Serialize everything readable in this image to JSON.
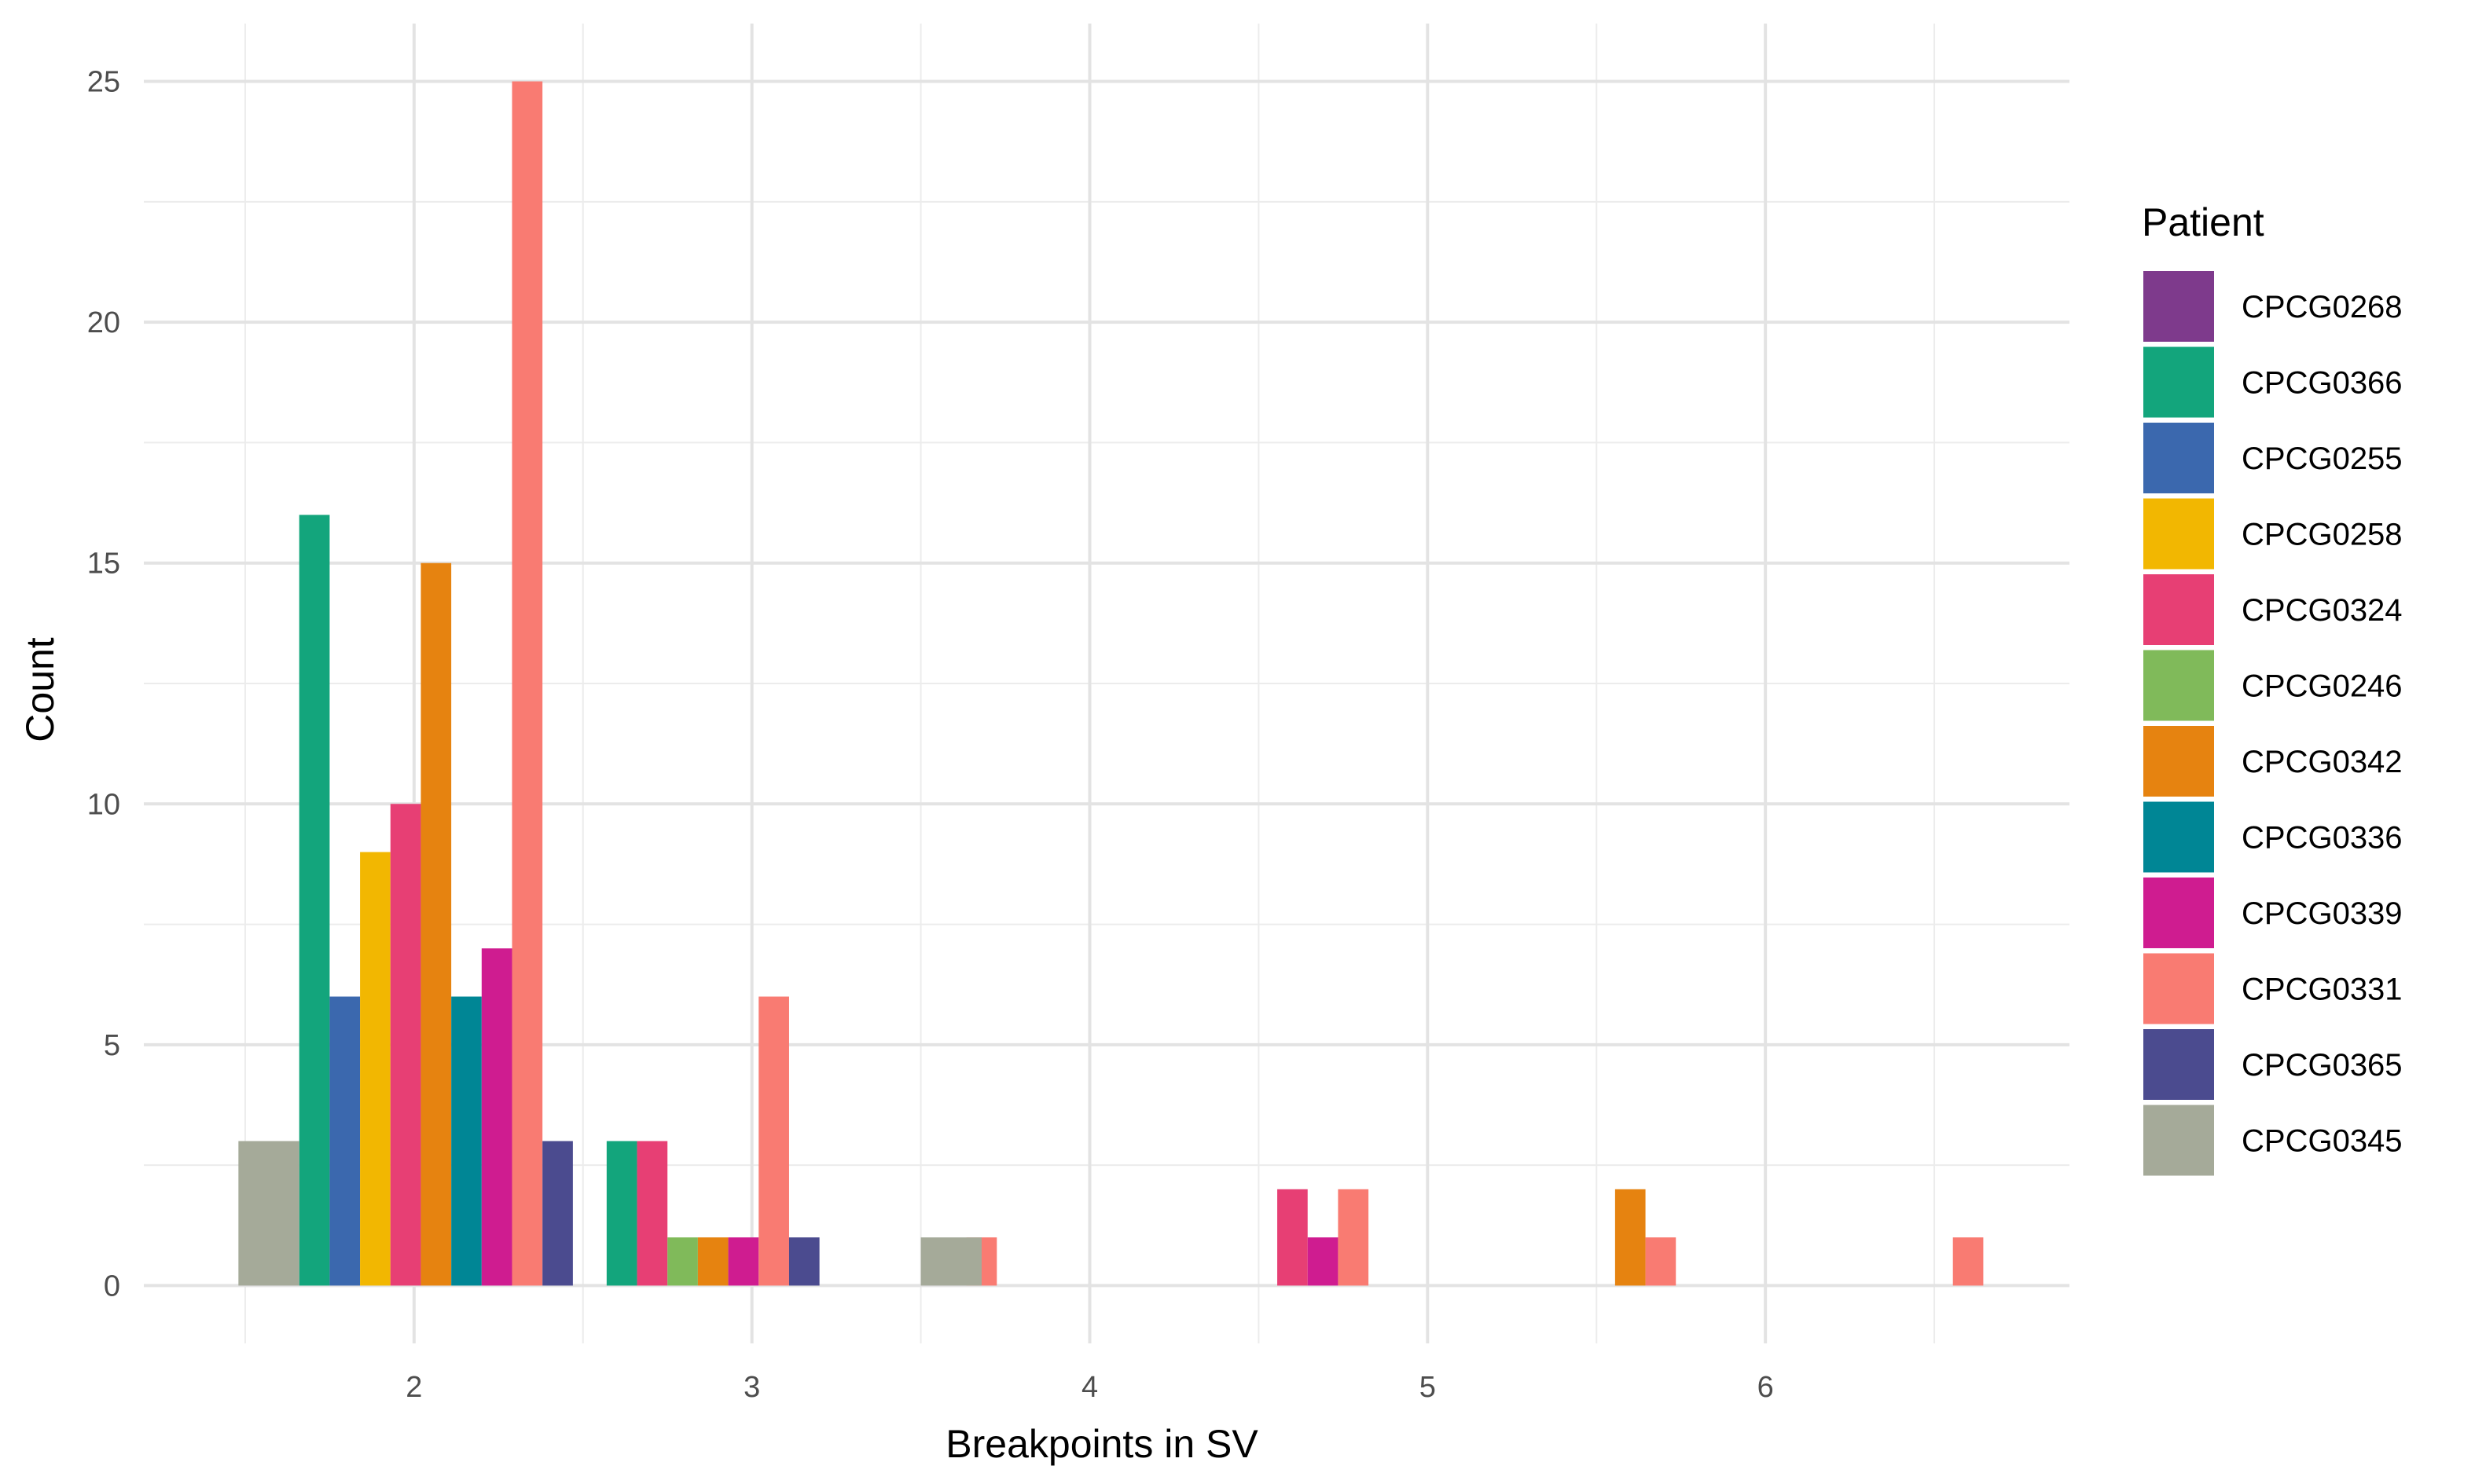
{
  "chart_data": {
    "type": "bar",
    "xlabel": "Breakpoints in SV",
    "ylabel": "Count",
    "xlim": [
      1.2,
      6.9
    ],
    "ylim": [
      -1.2,
      26.2
    ],
    "x_ticks": [
      2,
      3,
      4,
      5,
      6
    ],
    "x_tick_labels": [
      "2",
      "3",
      "4",
      "5",
      "6"
    ],
    "y_ticks": [
      0,
      5,
      10,
      15,
      20,
      25
    ],
    "y_tick_labels": [
      "0",
      "5",
      "10",
      "15",
      "20",
      "25"
    ],
    "grid": true,
    "legend": {
      "title": "Patient",
      "placement": "right"
    },
    "series": [
      {
        "name": "CPCG0268",
        "color": "#7E3A8C",
        "points": []
      },
      {
        "name": "CPCG0366",
        "color": "#13A57C",
        "points": [
          {
            "x": 1.705,
            "y": 16
          },
          {
            "x": 2.615,
            "y": 3
          }
        ]
      },
      {
        "name": "CPCG0255",
        "color": "#3B68AE",
        "points": [
          {
            "x": 1.795,
            "y": 6
          }
        ]
      },
      {
        "name": "CPCG0258",
        "color": "#F2B701",
        "points": [
          {
            "x": 1.885,
            "y": 9
          }
        ]
      },
      {
        "name": "CPCG0324",
        "color": "#E73F74",
        "points": [
          {
            "x": 1.975,
            "y": 10
          },
          {
            "x": 2.705,
            "y": 3
          },
          {
            "x": 4.6,
            "y": 2
          }
        ]
      },
      {
        "name": "CPCG0246",
        "color": "#80BA5A",
        "points": [
          {
            "x": 2.795,
            "y": 1
          }
        ]
      },
      {
        "name": "CPCG0342",
        "color": "#E68310",
        "points": [
          {
            "x": 2.065,
            "y": 15
          },
          {
            "x": 2.885,
            "y": 1
          },
          {
            "x": 5.6,
            "y": 2
          }
        ]
      },
      {
        "name": "CPCG0336",
        "color": "#008695",
        "points": [
          {
            "x": 2.155,
            "y": 6
          }
        ]
      },
      {
        "name": "CPCG0339",
        "color": "#CF1C90",
        "points": [
          {
            "x": 2.245,
            "y": 7
          },
          {
            "x": 2.975,
            "y": 1
          },
          {
            "x": 4.69,
            "y": 1
          }
        ]
      },
      {
        "name": "CPCG0331",
        "color": "#F97B72",
        "points": [
          {
            "x": 2.335,
            "y": 25
          },
          {
            "x": 3.065,
            "y": 6
          },
          {
            "x": 3.68,
            "y": 1
          },
          {
            "x": 4.78,
            "y": 2
          },
          {
            "x": 5.69,
            "y": 1
          },
          {
            "x": 6.6,
            "y": 1
          }
        ]
      },
      {
        "name": "CPCG0365",
        "color": "#4B4B8F",
        "points": [
          {
            "x": 2.425,
            "y": 3
          },
          {
            "x": 3.155,
            "y": 1
          }
        ]
      },
      {
        "name": "CPCG0345",
        "color": "#A5AA99",
        "points": [
          {
            "x": 1.57,
            "y": 3,
            "width": 0.18
          },
          {
            "x": 3.59,
            "y": 1,
            "width": 0.18
          }
        ]
      }
    ],
    "bar_width": 0.09
  }
}
